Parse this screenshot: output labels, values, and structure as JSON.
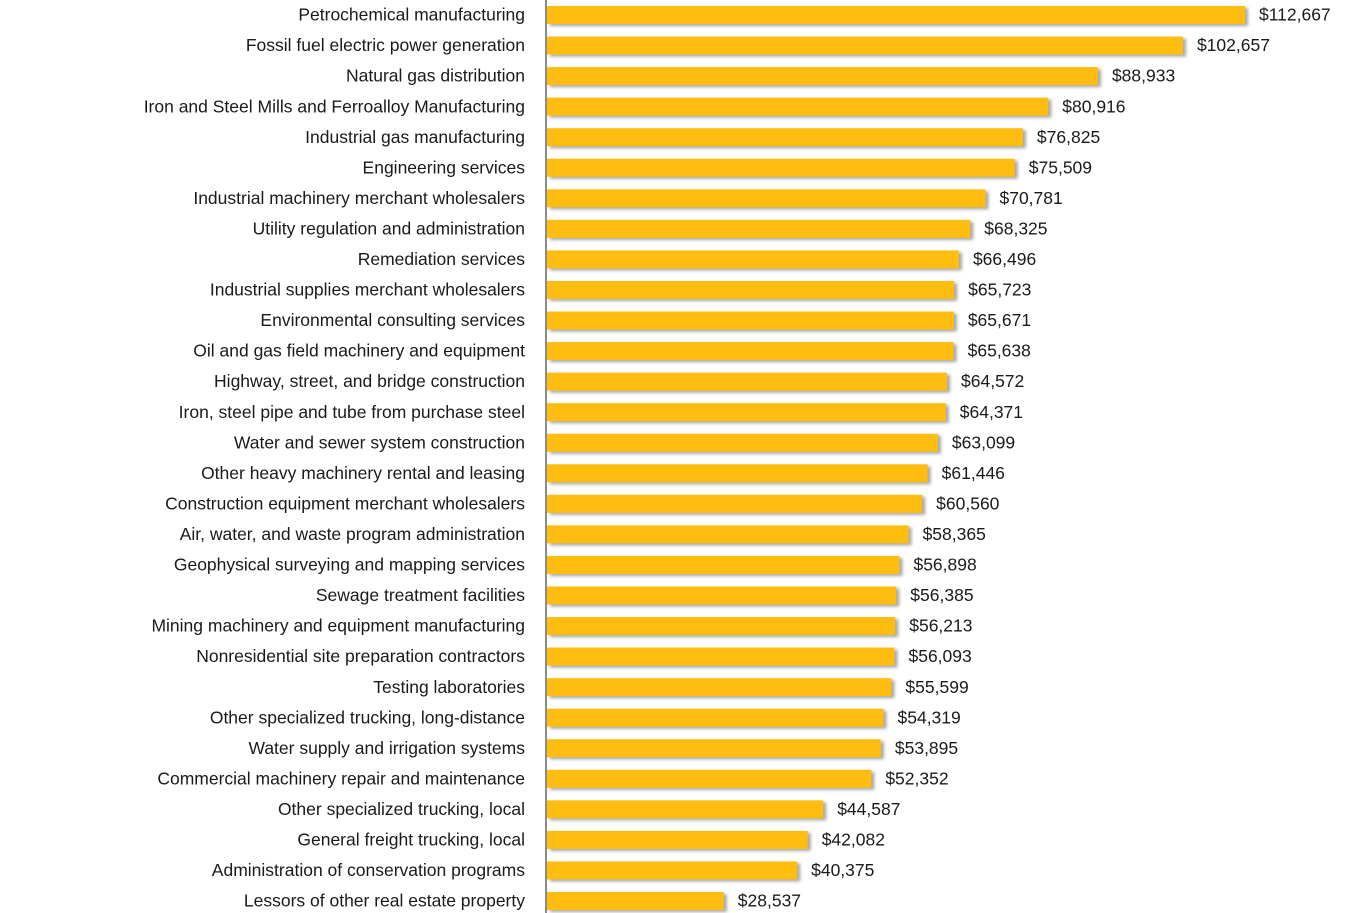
{
  "chart_data": {
    "type": "bar",
    "orientation": "horizontal",
    "color": "#FFBE0F",
    "categories": [
      "Petrochemical manufacturing",
      "Fossil fuel electric power generation",
      "Natural gas distribution",
      "Iron and Steel Mills and Ferroalloy Manufacturing",
      "Industrial gas manufacturing",
      "Engineering services",
      "Industrial machinery merchant wholesalers",
      "Utility regulation and administration",
      "Remediation services",
      "Industrial supplies merchant wholesalers",
      "Environmental consulting services",
      "Oil and gas field machinery and equipment",
      "Highway, street, and bridge construction",
      "Iron, steel pipe and tube from purchase steel",
      "Water and sewer system construction",
      "Other heavy machinery rental and leasing",
      "Construction equipment merchant wholesalers",
      "Air, water, and waste program administration",
      "Geophysical surveying and mapping services",
      "Sewage treatment facilities",
      "Mining machinery and equipment manufacturing",
      "Nonresidential site preparation contractors",
      "Testing laboratories",
      "Other specialized trucking, long-distance",
      "Water supply and irrigation systems",
      "Commercial machinery repair and maintenance",
      "Other specialized trucking, local",
      "General freight trucking, local",
      "Administration of conservation programs",
      "Lessors of other real estate property"
    ],
    "values": [
      112667,
      102657,
      88933,
      80916,
      76825,
      75509,
      70781,
      68325,
      66496,
      65723,
      65671,
      65638,
      64572,
      64371,
      63099,
      61446,
      60560,
      58365,
      56898,
      56385,
      56213,
      56093,
      55599,
      54319,
      53895,
      52352,
      44587,
      42082,
      40375,
      28537
    ],
    "value_labels": [
      "$112,667",
      "$102,657",
      "$88,933",
      "$80,916",
      "$76,825",
      "$75,509",
      "$70,781",
      "$68,325",
      "$66,496",
      "$65,723",
      "$65,671",
      "$65,638",
      "$64,572",
      "$64,371",
      "$63,099",
      "$61,446",
      "$60,560",
      "$58,365",
      "$56,898",
      "$56,385",
      "$56,213",
      "$56,093",
      "$55,599",
      "$54,319",
      "$53,895",
      "$52,352",
      "$44,587",
      "$42,082",
      "$40,375",
      "$28,537"
    ],
    "xlim": [
      0,
      120000
    ]
  }
}
